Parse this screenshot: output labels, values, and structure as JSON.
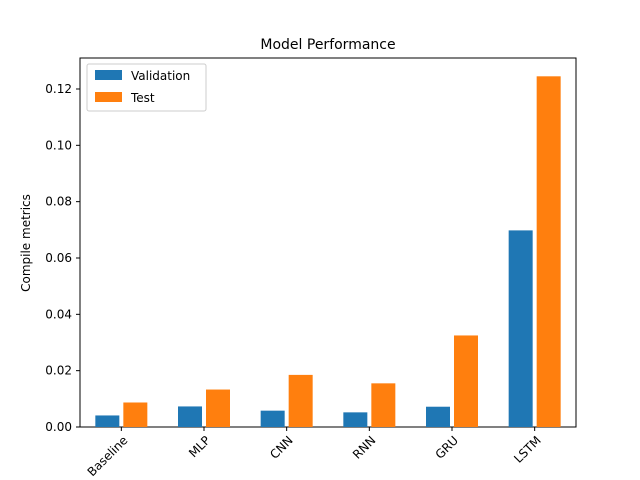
{
  "chart_data": {
    "type": "bar",
    "title": "Model Performance",
    "xlabel": "",
    "ylabel": "Compile metrics",
    "categories": [
      "Baseline",
      "MLP",
      "CNN",
      "RNN",
      "GRU",
      "LSTM"
    ],
    "series": [
      {
        "name": "Validation",
        "color": "#1f77b4",
        "values": [
          0.0041,
          0.0073,
          0.0058,
          0.0052,
          0.0072,
          0.0698
        ]
      },
      {
        "name": "Test",
        "color": "#ff7f0e",
        "values": [
          0.0087,
          0.0133,
          0.0185,
          0.0155,
          0.0325,
          0.1245
        ]
      }
    ],
    "ylim": [
      0,
      0.131
    ],
    "yticks": [
      "0.00",
      "0.02",
      "0.04",
      "0.06",
      "0.08",
      "0.10",
      "0.12"
    ],
    "ytick_values": [
      0,
      0.02,
      0.04,
      0.06,
      0.08,
      0.1,
      0.12
    ],
    "legend_position": "top-left",
    "grid": false,
    "xtick_rotation_deg": 45
  }
}
